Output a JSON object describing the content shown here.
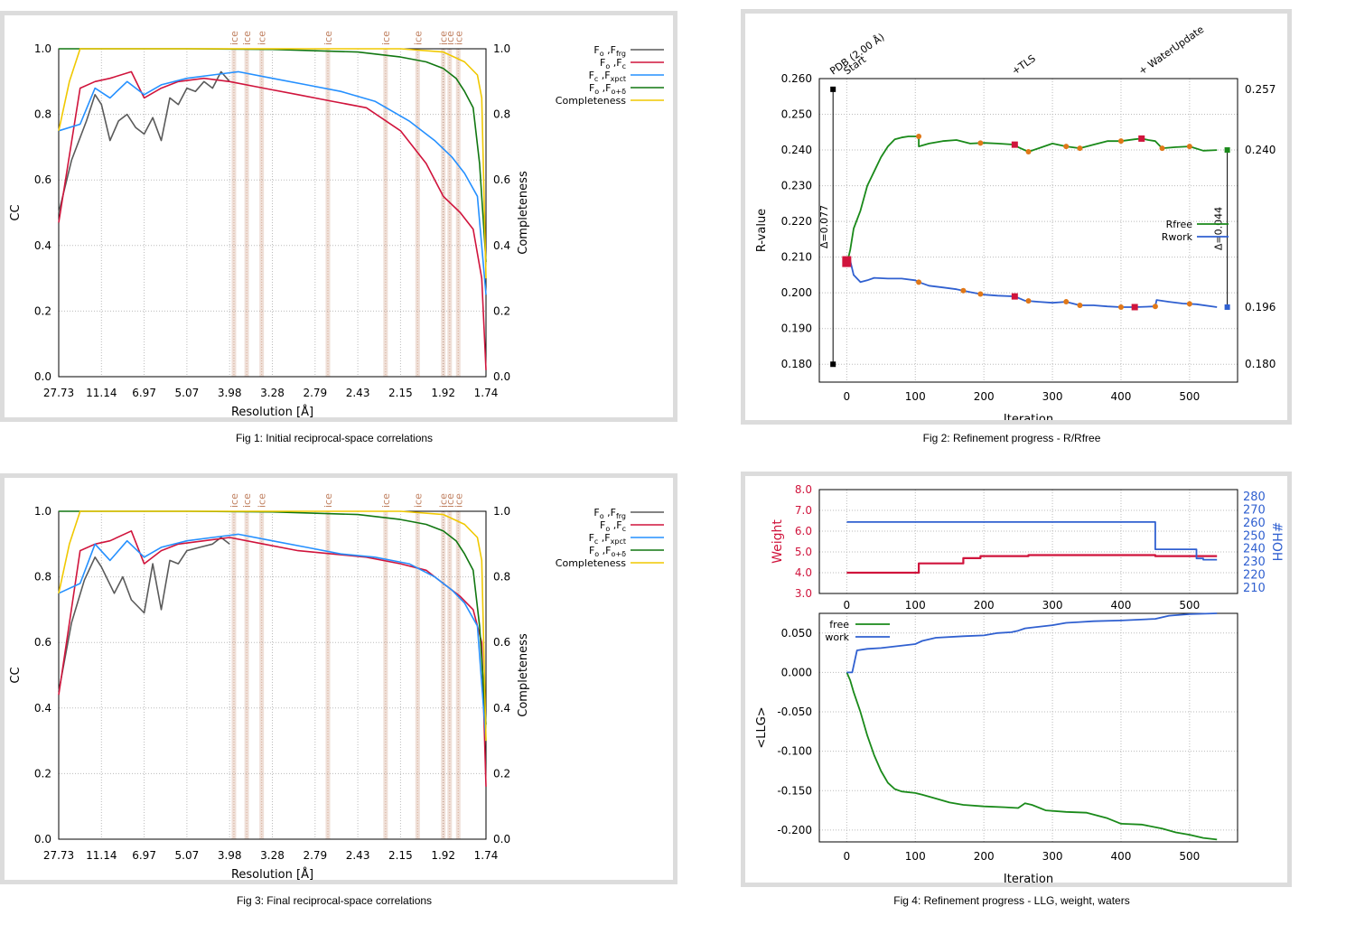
{
  "captions": {
    "fig1": "Fig 1:  Initial reciprocal-space correlations",
    "fig2": "Fig 2:  Refinement progress - R/Rfree",
    "fig3": "Fig 3:  Final reciprocal-space correlations",
    "fig4": "Fig 4:  Refinement progress - LLG, weight, waters"
  },
  "colors": {
    "fofrg": "#5a5a5a",
    "fofc": "#d0143c",
    "fcfxpct": "#2590ff",
    "fofod": "#117711",
    "completeness": "#f0c800",
    "ice": "#c08060",
    "rfree": "#1a8a1a",
    "rwork": "#3060d0",
    "marker_orange": "#e07818",
    "marker_red": "#d0143c",
    "weight": "#d0143c",
    "hoh": "#3060d0"
  },
  "chart_data": [
    {
      "id": "fig1",
      "type": "line",
      "xlabel": "Resolution [Å]",
      "ylabel": "CC",
      "y2label": "Completeness",
      "x_ticks": [
        "27.73",
        "11.14",
        "6.97",
        "5.07",
        "3.98",
        "3.28",
        "2.79",
        "2.43",
        "2.15",
        "1.92",
        "1.74"
      ],
      "y_ticks": [
        "0.0",
        "0.2",
        "0.4",
        "0.6",
        "0.8",
        "1.0"
      ],
      "y2_ticks": [
        "0.0",
        "0.2",
        "0.4",
        "0.6",
        "0.8",
        "1.0"
      ],
      "ylim": [
        0,
        1
      ],
      "ice_label": "ice",
      "ice_positions": [
        0.41,
        0.44,
        0.475,
        0.63,
        0.765,
        0.84,
        0.9,
        0.915,
        0.935
      ],
      "legend": [
        "Fo ,Ffrg",
        "Fo ,Fc",
        "Fc ,Fxpct",
        "Fo ,Fo+δ",
        "Completeness"
      ],
      "series": [
        {
          "name": "Fo ,Ffrg",
          "color_key": "fofrg",
          "x": [
            0,
            0.03,
            0.065,
            0.085,
            0.1,
            0.12,
            0.14,
            0.16,
            0.18,
            0.2,
            0.22,
            0.24,
            0.26,
            0.28,
            0.3,
            0.32,
            0.34,
            0.36,
            0.38,
            0.4
          ],
          "y": [
            0.5,
            0.66,
            0.78,
            0.86,
            0.83,
            0.72,
            0.78,
            0.8,
            0.76,
            0.74,
            0.79,
            0.72,
            0.85,
            0.83,
            0.88,
            0.87,
            0.9,
            0.88,
            0.93,
            0.9
          ]
        },
        {
          "name": "Fo ,Fc",
          "color_key": "fofc",
          "x": [
            0,
            0.05,
            0.085,
            0.12,
            0.17,
            0.2,
            0.24,
            0.28,
            0.34,
            0.4,
            0.48,
            0.56,
            0.64,
            0.72,
            0.8,
            0.86,
            0.9,
            0.94,
            0.97,
            0.99,
            1.0
          ],
          "y": [
            0.47,
            0.88,
            0.9,
            0.91,
            0.93,
            0.85,
            0.88,
            0.9,
            0.91,
            0.9,
            0.88,
            0.86,
            0.84,
            0.82,
            0.75,
            0.65,
            0.55,
            0.5,
            0.45,
            0.3,
            0.02
          ]
        },
        {
          "name": "Fc ,Fxpct",
          "color_key": "fcfxpct",
          "x": [
            0,
            0.05,
            0.085,
            0.12,
            0.16,
            0.2,
            0.24,
            0.3,
            0.36,
            0.42,
            0.5,
            0.58,
            0.66,
            0.74,
            0.82,
            0.88,
            0.92,
            0.95,
            0.98,
            1.0
          ],
          "y": [
            0.75,
            0.77,
            0.88,
            0.85,
            0.9,
            0.86,
            0.89,
            0.91,
            0.92,
            0.93,
            0.91,
            0.89,
            0.87,
            0.84,
            0.78,
            0.72,
            0.67,
            0.62,
            0.55,
            0.25
          ]
        },
        {
          "name": "Fo ,Fo+δ",
          "color_key": "fofod",
          "x": [
            0,
            0.05,
            0.3,
            0.5,
            0.7,
            0.8,
            0.86,
            0.9,
            0.93,
            0.95,
            0.97,
            0.985,
            1.0
          ],
          "y": [
            1.0,
            1.0,
            1.0,
            0.998,
            0.99,
            0.975,
            0.96,
            0.94,
            0.91,
            0.87,
            0.82,
            0.65,
            0.35
          ]
        },
        {
          "name": "Completeness",
          "color_key": "completeness",
          "x": [
            0,
            0.025,
            0.05,
            0.5,
            0.8,
            0.9,
            0.95,
            0.98,
            0.99,
            1.0
          ],
          "y": [
            0.75,
            0.9,
            1.0,
            1.0,
            1.0,
            0.99,
            0.96,
            0.92,
            0.85,
            0.3
          ]
        }
      ]
    },
    {
      "id": "fig2",
      "type": "line",
      "xlabel": "Iteration",
      "ylabel": "R-value",
      "x_ticks": [
        0,
        100,
        200,
        300,
        400,
        500
      ],
      "xlim": [
        -40,
        570
      ],
      "y_ticks": [
        "0.260",
        "0.250",
        "0.240",
        "0.230",
        "0.220",
        "0.210",
        "0.200",
        "0.190",
        "0.180"
      ],
      "ylim": [
        0.175,
        0.26
      ],
      "y2_ticks": [
        "0.257",
        "0.240",
        "0.196",
        "0.180"
      ],
      "top_labels": [
        {
          "text": "PDB (2.00 Å)",
          "x": -20
        },
        {
          "text": "Start",
          "x": 0
        },
        {
          "text": "+TLS",
          "x": 245
        },
        {
          "text": "+ WaterUpdate",
          "x": 430
        }
      ],
      "delta_left": "Δ=0.077",
      "delta_right": "Δ=0.044",
      "legend": [
        "Rfree",
        "Rwork"
      ],
      "series": [
        {
          "name": "Rfree",
          "color_key": "rfree",
          "x": [
            0,
            5,
            10,
            20,
            30,
            40,
            50,
            60,
            70,
            80,
            90,
            100,
            105,
            105,
            120,
            140,
            160,
            180,
            200,
            220,
            245,
            250,
            265,
            280,
            300,
            320,
            340,
            360,
            380,
            400,
            420,
            430,
            440,
            450,
            460,
            480,
            500,
            520,
            540
          ],
          "y": [
            0.208,
            0.212,
            0.218,
            0.223,
            0.23,
            0.234,
            0.238,
            0.241,
            0.243,
            0.2435,
            0.2438,
            0.2438,
            0.2438,
            0.241,
            0.2418,
            0.2425,
            0.2428,
            0.2418,
            0.242,
            0.2418,
            0.2415,
            0.2408,
            0.2395,
            0.2405,
            0.2418,
            0.241,
            0.2405,
            0.2415,
            0.2425,
            0.2425,
            0.243,
            0.2432,
            0.2428,
            0.2425,
            0.2405,
            0.2408,
            0.241,
            0.2398,
            0.24
          ]
        },
        {
          "name": "Rwork",
          "color_key": "rwork",
          "x": [
            0,
            5,
            10,
            20,
            30,
            40,
            60,
            80,
            100,
            105,
            120,
            140,
            160,
            180,
            200,
            220,
            245,
            260,
            280,
            300,
            320,
            340,
            360,
            380,
            400,
            420,
            450,
            452,
            470,
            490,
            510,
            540
          ],
          "y": [
            0.208,
            0.209,
            0.205,
            0.203,
            0.2035,
            0.2042,
            0.204,
            0.204,
            0.2035,
            0.203,
            0.202,
            0.2015,
            0.201,
            0.2002,
            0.1995,
            0.1992,
            0.199,
            0.1978,
            0.1975,
            0.1972,
            0.1975,
            0.1965,
            0.1965,
            0.1962,
            0.196,
            0.196,
            0.1962,
            0.198,
            0.1975,
            0.197,
            0.1968,
            0.196
          ]
        }
      ]
    },
    {
      "id": "fig3",
      "type": "line",
      "xlabel": "Resolution [Å]",
      "ylabel": "CC",
      "y2label": "Completeness",
      "x_ticks": [
        "27.73",
        "11.14",
        "6.97",
        "5.07",
        "3.98",
        "3.28",
        "2.79",
        "2.43",
        "2.15",
        "1.92",
        "1.74"
      ],
      "y_ticks": [
        "0.0",
        "0.2",
        "0.4",
        "0.6",
        "0.8",
        "1.0"
      ],
      "y2_ticks": [
        "0.0",
        "0.2",
        "0.4",
        "0.6",
        "0.8",
        "1.0"
      ],
      "ylim": [
        0,
        1
      ],
      "ice_label": "ice",
      "ice_positions": [
        0.41,
        0.44,
        0.475,
        0.63,
        0.765,
        0.84,
        0.9,
        0.915,
        0.935
      ],
      "legend": [
        "Fo ,Ffrg",
        "Fo ,Fc",
        "Fc ,Fxpct",
        "Fo ,Fo+δ",
        "Completeness"
      ],
      "series": [
        {
          "name": "Fo ,Ffrg",
          "color_key": "fofrg",
          "x": [
            0,
            0.03,
            0.06,
            0.085,
            0.1,
            0.13,
            0.15,
            0.17,
            0.2,
            0.22,
            0.24,
            0.26,
            0.28,
            0.3,
            0.33,
            0.36,
            0.38,
            0.4
          ],
          "y": [
            0.45,
            0.66,
            0.79,
            0.86,
            0.83,
            0.75,
            0.8,
            0.73,
            0.69,
            0.84,
            0.7,
            0.85,
            0.84,
            0.88,
            0.89,
            0.9,
            0.92,
            0.9
          ]
        },
        {
          "name": "Fo ,Fc",
          "color_key": "fofc",
          "x": [
            0,
            0.05,
            0.085,
            0.12,
            0.17,
            0.2,
            0.24,
            0.28,
            0.34,
            0.4,
            0.48,
            0.56,
            0.64,
            0.72,
            0.8,
            0.86,
            0.9,
            0.94,
            0.97,
            0.99,
            1.0
          ],
          "y": [
            0.44,
            0.88,
            0.9,
            0.91,
            0.94,
            0.84,
            0.88,
            0.9,
            0.91,
            0.92,
            0.9,
            0.88,
            0.87,
            0.86,
            0.84,
            0.82,
            0.78,
            0.74,
            0.7,
            0.6,
            0.16
          ]
        },
        {
          "name": "Fc ,Fxpct",
          "color_key": "fcfxpct",
          "x": [
            0,
            0.05,
            0.085,
            0.12,
            0.16,
            0.2,
            0.24,
            0.3,
            0.36,
            0.42,
            0.5,
            0.58,
            0.66,
            0.74,
            0.82,
            0.88,
            0.92,
            0.95,
            0.98,
            1.0
          ],
          "y": [
            0.75,
            0.78,
            0.9,
            0.85,
            0.91,
            0.86,
            0.89,
            0.91,
            0.92,
            0.93,
            0.91,
            0.89,
            0.87,
            0.86,
            0.84,
            0.8,
            0.76,
            0.72,
            0.65,
            0.3
          ]
        },
        {
          "name": "Fo ,Fo+δ",
          "color_key": "fofod",
          "x": [
            0,
            0.05,
            0.3,
            0.5,
            0.7,
            0.8,
            0.86,
            0.9,
            0.93,
            0.95,
            0.97,
            0.985,
            1.0
          ],
          "y": [
            1.0,
            1.0,
            1.0,
            0.998,
            0.99,
            0.975,
            0.96,
            0.94,
            0.91,
            0.87,
            0.82,
            0.65,
            0.35
          ]
        },
        {
          "name": "Completeness",
          "color_key": "completeness",
          "x": [
            0,
            0.025,
            0.05,
            0.5,
            0.8,
            0.9,
            0.95,
            0.98,
            0.99,
            1.0
          ],
          "y": [
            0.75,
            0.9,
            1.0,
            1.0,
            1.0,
            0.99,
            0.96,
            0.92,
            0.85,
            0.3
          ]
        }
      ]
    },
    {
      "id": "fig4a",
      "type": "line",
      "ylabel": "Weight",
      "y2label": "#HOH",
      "x_ticks": [
        0,
        100,
        200,
        300,
        400,
        500
      ],
      "xlim": [
        -40,
        570
      ],
      "y_ticks": [
        "8.0",
        "7.0",
        "6.0",
        "5.0",
        "4.0",
        "3.0"
      ],
      "ylim": [
        3,
        8
      ],
      "y2_ticks": [
        "280",
        "270",
        "260",
        "250",
        "240",
        "230",
        "220",
        "210"
      ],
      "y2lim": [
        205,
        285
      ],
      "series": [
        {
          "name": "Weight",
          "color_key": "weight",
          "x": [
            0,
            105,
            105,
            170,
            170,
            195,
            195,
            265,
            265,
            450,
            450,
            540
          ],
          "y": [
            4.0,
            4.0,
            4.45,
            4.45,
            4.7,
            4.7,
            4.8,
            4.8,
            4.85,
            4.85,
            4.8,
            4.8
          ]
        },
        {
          "name": "#HOH",
          "color_key": "hoh",
          "x": [
            0,
            450,
            450,
            455,
            455,
            510,
            510,
            520,
            520,
            540
          ],
          "y": [
            260,
            260,
            239,
            239,
            239,
            239,
            232,
            232,
            231,
            231
          ]
        }
      ]
    },
    {
      "id": "fig4b",
      "type": "line",
      "xlabel": "Iteration",
      "ylabel": "<LLG>",
      "x_ticks": [
        0,
        100,
        200,
        300,
        400,
        500
      ],
      "xlim": [
        -40,
        570
      ],
      "y_ticks": [
        "0.050",
        "0.000",
        "-0.050",
        "-0.100",
        "-0.150",
        "-0.200"
      ],
      "ylim": [
        -0.215,
        0.075
      ],
      "legend": [
        "free",
        "work"
      ],
      "series": [
        {
          "name": "free",
          "color_key": "rfree",
          "x": [
            0,
            5,
            10,
            20,
            30,
            40,
            50,
            60,
            70,
            80,
            100,
            110,
            130,
            150,
            170,
            200,
            230,
            250,
            260,
            270,
            290,
            320,
            350,
            380,
            400,
            430,
            460,
            480,
            500,
            520,
            540
          ],
          "y": [
            0.0,
            -0.01,
            -0.025,
            -0.05,
            -0.08,
            -0.105,
            -0.125,
            -0.14,
            -0.148,
            -0.151,
            -0.153,
            -0.155,
            -0.16,
            -0.165,
            -0.168,
            -0.17,
            -0.171,
            -0.172,
            -0.166,
            -0.168,
            -0.175,
            -0.177,
            -0.178,
            -0.185,
            -0.192,
            -0.193,
            -0.198,
            -0.203,
            -0.206,
            -0.21,
            -0.212
          ]
        },
        {
          "name": "work",
          "color_key": "rwork",
          "x": [
            0,
            8,
            15,
            30,
            50,
            70,
            100,
            110,
            130,
            170,
            200,
            220,
            240,
            250,
            260,
            300,
            320,
            340,
            360,
            400,
            450,
            470,
            500,
            540
          ],
          "y": [
            0.0,
            0.0,
            0.028,
            0.03,
            0.031,
            0.033,
            0.036,
            0.04,
            0.044,
            0.046,
            0.047,
            0.05,
            0.051,
            0.053,
            0.056,
            0.06,
            0.063,
            0.064,
            0.065,
            0.066,
            0.068,
            0.072,
            0.074,
            0.075
          ]
        }
      ]
    }
  ]
}
